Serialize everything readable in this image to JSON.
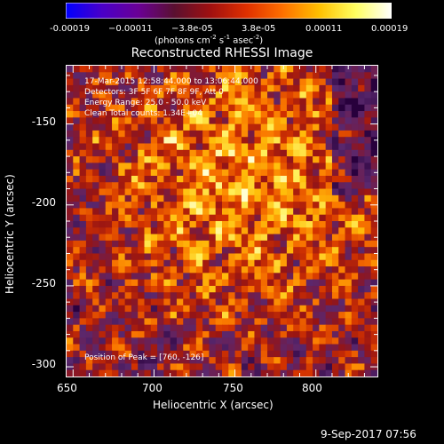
{
  "colorbar": {
    "ticks": [
      "-0.00019",
      "−0.00011",
      "−3.8e-05",
      "3.8e-05",
      "0.00011",
      "0.00019"
    ],
    "unit_text": [
      "(photons cm",
      "-2",
      " s",
      "-1",
      " asec",
      "-2",
      ")"
    ],
    "colors": [
      "#0000ff",
      "#4a00c8",
      "#6a0096",
      "#5a1030",
      "#a01010",
      "#e03000",
      "#ff7000",
      "#ffc000",
      "#ffff60",
      "#ffffff"
    ]
  },
  "title": "Reconstructed RHESSI Image",
  "annotations": [
    "17-Mar-2015 12:58:44.000 to 13:06:44.000",
    "Detectors: 3F 5F 6F 7F 8F 9F, Att 0",
    "Energy Range: 25.0 - 50.0 keV",
    "Clean    Total counts: 1.34E+04"
  ],
  "peak_text": "Position of Peak = [760, -126]",
  "x_axis": {
    "label": "Heliocentric X (arcsec)",
    "ticks": [
      "650",
      "700",
      "750",
      "800"
    ]
  },
  "y_axis": {
    "label": "Heliocentric Y (arcsec)",
    "ticks": [
      "-150",
      "-200",
      "-250",
      "-300"
    ]
  },
  "datestamp": "9-Sep-2017 07:56",
  "chart_data": {
    "type": "heatmap",
    "title": "Reconstructed RHESSI Image",
    "xlabel": "Heliocentric X (arcsec)",
    "ylabel": "Heliocentric Y (arcsec)",
    "xlim": [
      646,
      838
    ],
    "ylim": [
      -306,
      -114
    ],
    "zlim": [
      -0.00019,
      0.00019
    ],
    "peak": [
      760,
      -126
    ],
    "grid": false
  }
}
